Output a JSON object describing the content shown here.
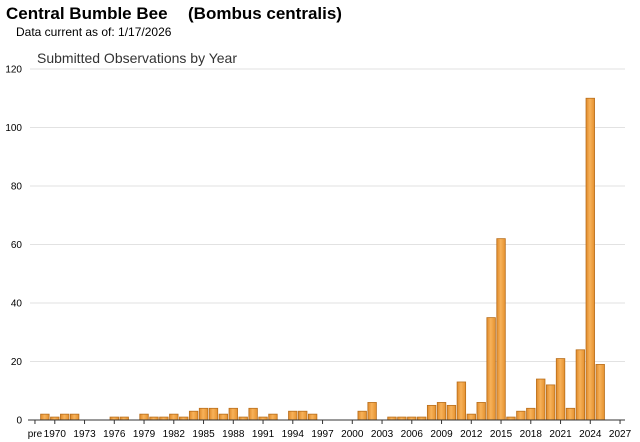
{
  "header": {
    "title": "Central Bumble Bee",
    "scientific_name": "(Bombus centralis)",
    "data_current": "Data current as of: 1/17/2026"
  },
  "chart_data": {
    "type": "bar",
    "title": "Submitted Observations by Year",
    "xlabel": "",
    "ylabel": "",
    "ylim": [
      0,
      120
    ],
    "y_ticks": [
      0,
      20,
      40,
      60,
      80,
      100,
      120
    ],
    "grid": "horizontal",
    "bar_color": "#f0a040",
    "bar_edge_color": "#b86e1c",
    "categories": [
      "pre",
      "1969",
      "1970",
      "1971",
      "1972",
      "1973",
      "1974",
      "1975",
      "1976",
      "1977",
      "1978",
      "1979",
      "1980",
      "1981",
      "1982",
      "1983",
      "1984",
      "1985",
      "1986",
      "1987",
      "1988",
      "1989",
      "1990",
      "1991",
      "1992",
      "1993",
      "1994",
      "1995",
      "1996",
      "1997",
      "1998",
      "1999",
      "2000",
      "2001",
      "2002",
      "2003",
      "2004",
      "2005",
      "2006",
      "2007",
      "2008",
      "2009",
      "2010",
      "2011",
      "2012",
      "2013",
      "2014",
      "2015",
      "2016",
      "2017",
      "2018",
      "2019",
      "2020",
      "2021",
      "2022",
      "2023",
      "2024",
      "2025",
      "2026",
      "2027"
    ],
    "values": [
      0,
      2,
      1,
      2,
      2,
      0,
      0,
      0,
      1,
      1,
      0,
      2,
      1,
      1,
      2,
      1,
      3,
      4,
      4,
      2,
      4,
      1,
      4,
      1,
      2,
      0,
      3,
      3,
      2,
      0,
      0,
      0,
      0,
      3,
      6,
      0,
      1,
      1,
      1,
      1,
      5,
      6,
      5,
      13,
      2,
      6,
      35,
      62,
      1,
      3,
      4,
      14,
      12,
      21,
      4,
      24,
      110,
      19,
      0,
      0
    ],
    "x_tick_labels": [
      "pre",
      "1970",
      "1973",
      "1976",
      "1979",
      "1982",
      "1985",
      "1988",
      "1991",
      "1994",
      "1997",
      "2000",
      "2003",
      "2006",
      "2009",
      "2012",
      "2015",
      "2018",
      "2021",
      "2024",
      "2027"
    ]
  }
}
